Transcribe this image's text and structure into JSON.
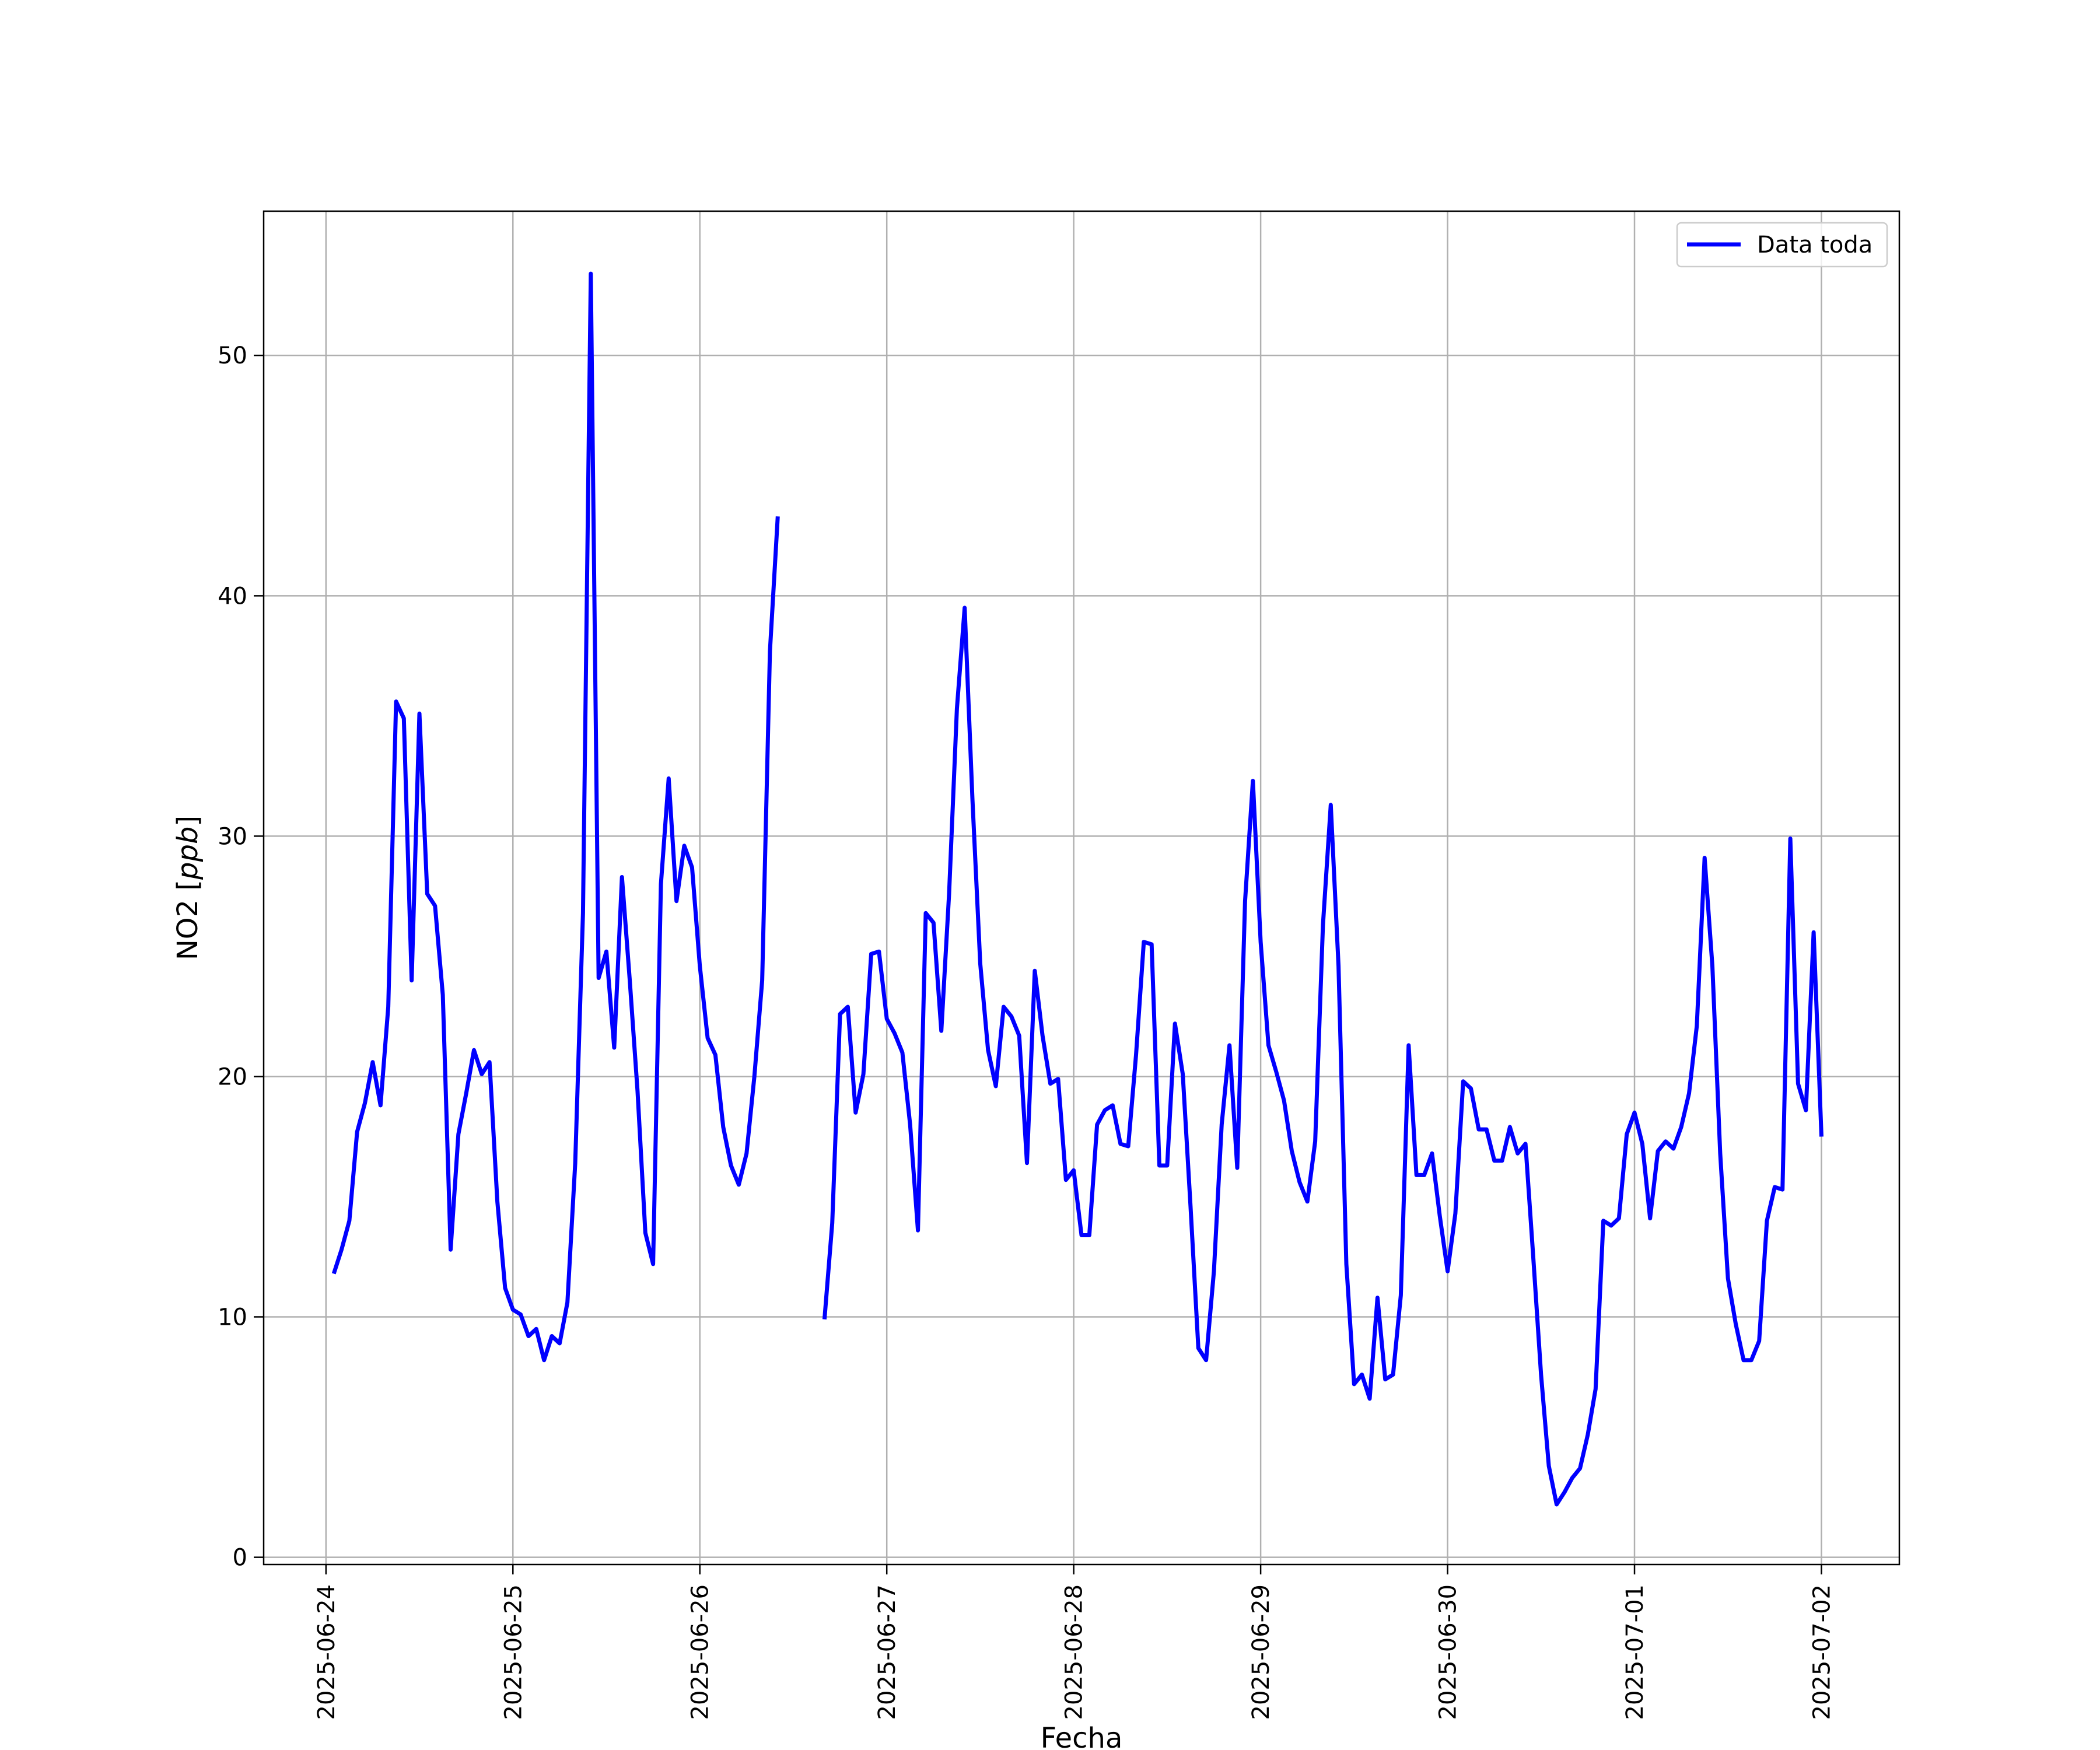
{
  "chart_data": {
    "type": "line",
    "title": "",
    "xlabel": "Fecha",
    "ylabel_main": "NO2 [",
    "ylabel_unit": "ppb",
    "ylabel_close": "]",
    "x_ticks": [
      "2025-06-24",
      "2025-06-25",
      "2025-06-26",
      "2025-06-27",
      "2025-06-28",
      "2025-06-29",
      "2025-06-30",
      "2025-07-01",
      "2025-07-02"
    ],
    "y_ticks": [
      "0",
      "10",
      "20",
      "30",
      "40",
      "50"
    ],
    "xlim": [
      "2025-06-23 16:00",
      "2025-07-02 10:00"
    ],
    "ylim": [
      -0.3,
      56
    ],
    "grid": true,
    "legend_position": "top-right",
    "series": [
      {
        "name": "Data toda",
        "color": "#0000ff",
        "points": [
          [
            "2025-06-24 01:00",
            11.8
          ],
          [
            "2025-06-24 02:00",
            12.8
          ],
          [
            "2025-06-24 03:00",
            14.0
          ],
          [
            "2025-06-24 04:00",
            17.7
          ],
          [
            "2025-06-24 05:00",
            18.9
          ],
          [
            "2025-06-24 06:00",
            20.6
          ],
          [
            "2025-06-24 07:00",
            18.8
          ],
          [
            "2025-06-24 08:00",
            22.9
          ],
          [
            "2025-06-24 09:00",
            35.6
          ],
          [
            "2025-06-24 10:00",
            34.9
          ],
          [
            "2025-06-24 11:00",
            24.0
          ],
          [
            "2025-06-24 12:00",
            35.1
          ],
          [
            "2025-06-24 13:00",
            27.6
          ],
          [
            "2025-06-24 14:00",
            27.1
          ],
          [
            "2025-06-24 15:00",
            23.4
          ],
          [
            "2025-06-24 16:00",
            12.8
          ],
          [
            "2025-06-24 17:00",
            17.6
          ],
          [
            "2025-06-24 18:00",
            19.3
          ],
          [
            "2025-06-24 19:00",
            21.1
          ],
          [
            "2025-06-24 20:00",
            20.1
          ],
          [
            "2025-06-24 21:00",
            20.6
          ],
          [
            "2025-06-24 22:00",
            14.8
          ],
          [
            "2025-06-24 23:00",
            11.2
          ],
          [
            "2025-06-25 00:00",
            10.3
          ],
          [
            "2025-06-25 01:00",
            10.1
          ],
          [
            "2025-06-25 02:00",
            9.2
          ],
          [
            "2025-06-25 03:00",
            9.5
          ],
          [
            "2025-06-25 04:00",
            8.2
          ],
          [
            "2025-06-25 05:00",
            9.2
          ],
          [
            "2025-06-25 06:00",
            8.9
          ],
          [
            "2025-06-25 07:00",
            10.6
          ],
          [
            "2025-06-25 08:00",
            16.4
          ],
          [
            "2025-06-25 09:00",
            26.8
          ],
          [
            "2025-06-25 10:00",
            53.4
          ],
          [
            "2025-06-25 11:00",
            24.1
          ],
          [
            "2025-06-25 12:00",
            25.2
          ],
          [
            "2025-06-25 13:00",
            21.2
          ],
          [
            "2025-06-25 14:00",
            28.3
          ],
          [
            "2025-06-25 15:00",
            24.0
          ],
          [
            "2025-06-25 16:00",
            19.4
          ],
          [
            "2025-06-25 17:00",
            13.5
          ],
          [
            "2025-06-25 18:00",
            12.2
          ],
          [
            "2025-06-25 19:00",
            28.0
          ],
          [
            "2025-06-25 20:00",
            32.4
          ],
          [
            "2025-06-25 21:00",
            27.3
          ],
          [
            "2025-06-25 22:00",
            29.6
          ],
          [
            "2025-06-25 23:00",
            28.7
          ],
          [
            "2025-06-26 00:00",
            24.6
          ],
          [
            "2025-06-26 01:00",
            21.6
          ],
          [
            "2025-06-26 02:00",
            20.9
          ],
          [
            "2025-06-26 03:00",
            17.9
          ],
          [
            "2025-06-26 04:00",
            16.3
          ],
          [
            "2025-06-26 05:00",
            15.5
          ],
          [
            "2025-06-26 06:00",
            16.8
          ],
          [
            "2025-06-26 07:00",
            20.0
          ],
          [
            "2025-06-26 08:00",
            24.0
          ],
          [
            "2025-06-26 09:00",
            37.7
          ],
          [
            "2025-06-26 10:00",
            43.3
          ],
          null,
          [
            "2025-06-26 16:00",
            9.9
          ],
          [
            "2025-06-26 17:00",
            13.9
          ],
          [
            "2025-06-26 18:00",
            22.6
          ],
          [
            "2025-06-26 19:00",
            22.9
          ],
          [
            "2025-06-26 20:00",
            18.5
          ],
          [
            "2025-06-26 21:00",
            20.1
          ],
          [
            "2025-06-26 22:00",
            25.1
          ],
          [
            "2025-06-26 23:00",
            25.2
          ],
          [
            "2025-06-27 00:00",
            22.4
          ],
          [
            "2025-06-27 01:00",
            21.8
          ],
          [
            "2025-06-27 02:00",
            21.0
          ],
          [
            "2025-06-27 03:00",
            18.0
          ],
          [
            "2025-06-27 04:00",
            13.6
          ],
          [
            "2025-06-27 05:00",
            26.8
          ],
          [
            "2025-06-27 06:00",
            26.4
          ],
          [
            "2025-06-27 07:00",
            21.9
          ],
          [
            "2025-06-27 08:00",
            27.6
          ],
          [
            "2025-06-27 09:00",
            35.3
          ],
          [
            "2025-06-27 10:00",
            39.5
          ],
          [
            "2025-06-27 11:00",
            31.5
          ],
          [
            "2025-06-27 12:00",
            24.7
          ],
          [
            "2025-06-27 13:00",
            21.1
          ],
          [
            "2025-06-27 14:00",
            19.6
          ],
          [
            "2025-06-27 15:00",
            22.9
          ],
          [
            "2025-06-27 16:00",
            22.5
          ],
          [
            "2025-06-27 17:00",
            21.7
          ],
          [
            "2025-06-27 18:00",
            16.4
          ],
          [
            "2025-06-27 19:00",
            24.4
          ],
          [
            "2025-06-27 20:00",
            21.7
          ],
          [
            "2025-06-27 21:00",
            19.7
          ],
          [
            "2025-06-27 22:00",
            19.9
          ],
          [
            "2025-06-27 23:00",
            15.7
          ],
          [
            "2025-06-28 00:00",
            16.1
          ],
          [
            "2025-06-28 01:00",
            13.4
          ],
          [
            "2025-06-28 02:00",
            13.4
          ],
          [
            "2025-06-28 03:00",
            18.0
          ],
          [
            "2025-06-28 04:00",
            18.6
          ],
          [
            "2025-06-28 05:00",
            18.8
          ],
          [
            "2025-06-28 06:00",
            17.2
          ],
          [
            "2025-06-28 07:00",
            17.1
          ],
          [
            "2025-06-28 08:00",
            20.9
          ],
          [
            "2025-06-28 09:00",
            25.6
          ],
          [
            "2025-06-28 10:00",
            25.5
          ],
          [
            "2025-06-28 11:00",
            16.3
          ],
          [
            "2025-06-28 12:00",
            16.3
          ],
          [
            "2025-06-28 13:00",
            22.2
          ],
          [
            "2025-06-28 14:00",
            20.1
          ],
          [
            "2025-06-28 15:00",
            14.6
          ],
          [
            "2025-06-28 16:00",
            8.7
          ],
          [
            "2025-06-28 17:00",
            8.2
          ],
          [
            "2025-06-28 18:00",
            11.9
          ],
          [
            "2025-06-28 19:00",
            18.0
          ],
          [
            "2025-06-28 20:00",
            21.3
          ],
          [
            "2025-06-28 21:00",
            16.2
          ],
          [
            "2025-06-28 22:00",
            27.3
          ],
          [
            "2025-06-28 23:00",
            32.3
          ],
          [
            "2025-06-29 00:00",
            25.6
          ],
          [
            "2025-06-29 01:00",
            21.3
          ],
          [
            "2025-06-29 02:00",
            20.2
          ],
          [
            "2025-06-29 03:00",
            19.0
          ],
          [
            "2025-06-29 04:00",
            16.9
          ],
          [
            "2025-06-29 05:00",
            15.6
          ],
          [
            "2025-06-29 06:00",
            14.8
          ],
          [
            "2025-06-29 07:00",
            17.3
          ],
          [
            "2025-06-29 08:00",
            26.3
          ],
          [
            "2025-06-29 09:00",
            31.3
          ],
          [
            "2025-06-29 10:00",
            24.6
          ],
          [
            "2025-06-29 11:00",
            12.2
          ],
          [
            "2025-06-29 12:00",
            7.2
          ],
          [
            "2025-06-29 13:00",
            7.6
          ],
          [
            "2025-06-29 14:00",
            6.6
          ],
          [
            "2025-06-29 15:00",
            10.8
          ],
          [
            "2025-06-29 16:00",
            7.4
          ],
          [
            "2025-06-29 17:00",
            7.6
          ],
          [
            "2025-06-29 18:00",
            10.9
          ],
          [
            "2025-06-29 19:00",
            21.3
          ],
          [
            "2025-06-29 20:00",
            15.9
          ],
          [
            "2025-06-29 21:00",
            15.9
          ],
          [
            "2025-06-29 22:00",
            16.8
          ],
          [
            "2025-06-29 23:00",
            14.2
          ],
          [
            "2025-06-30 00:00",
            11.9
          ],
          [
            "2025-06-30 01:00",
            14.3
          ],
          [
            "2025-06-30 02:00",
            19.8
          ],
          [
            "2025-06-30 03:00",
            19.5
          ],
          [
            "2025-06-30 04:00",
            17.8
          ],
          [
            "2025-06-30 05:00",
            17.8
          ],
          [
            "2025-06-30 06:00",
            16.5
          ],
          [
            "2025-06-30 07:00",
            16.5
          ],
          [
            "2025-06-30 08:00",
            17.9
          ],
          [
            "2025-06-30 09:00",
            16.8
          ],
          [
            "2025-06-30 10:00",
            17.2
          ],
          [
            "2025-06-30 11:00",
            12.5
          ],
          [
            "2025-06-30 12:00",
            7.6
          ],
          [
            "2025-06-30 13:00",
            3.8
          ],
          [
            "2025-06-30 14:00",
            2.2
          ],
          [
            "2025-06-30 15:00",
            2.7
          ],
          [
            "2025-06-30 16:00",
            3.3
          ],
          [
            "2025-06-30 17:00",
            3.7
          ],
          [
            "2025-06-30 18:00",
            5.1
          ],
          [
            "2025-06-30 19:00",
            7.0
          ],
          [
            "2025-06-30 20:00",
            14.0
          ],
          [
            "2025-06-30 21:00",
            13.8
          ],
          [
            "2025-06-30 22:00",
            14.1
          ],
          [
            "2025-06-30 23:00",
            17.6
          ],
          [
            "2025-07-01 00:00",
            18.5
          ],
          [
            "2025-07-01 01:00",
            17.2
          ],
          [
            "2025-07-01 02:00",
            14.1
          ],
          [
            "2025-07-01 03:00",
            16.9
          ],
          [
            "2025-07-01 04:00",
            17.3
          ],
          [
            "2025-07-01 05:00",
            17.0
          ],
          [
            "2025-07-01 06:00",
            17.9
          ],
          [
            "2025-07-01 07:00",
            19.3
          ],
          [
            "2025-07-01 08:00",
            22.1
          ],
          [
            "2025-07-01 09:00",
            29.1
          ],
          [
            "2025-07-01 10:00",
            24.6
          ],
          [
            "2025-07-01 11:00",
            16.8
          ],
          [
            "2025-07-01 12:00",
            11.6
          ],
          [
            "2025-07-01 13:00",
            9.7
          ],
          [
            "2025-07-01 14:00",
            8.2
          ],
          [
            "2025-07-01 15:00",
            8.2
          ],
          [
            "2025-07-01 16:00",
            9.0
          ],
          [
            "2025-07-01 17:00",
            14.0
          ],
          [
            "2025-07-01 18:00",
            15.4
          ],
          [
            "2025-07-01 19:00",
            15.3
          ],
          [
            "2025-07-01 20:00",
            29.9
          ],
          [
            "2025-07-01 21:00",
            19.7
          ],
          [
            "2025-07-01 22:00",
            18.6
          ],
          [
            "2025-07-01 23:00",
            26.0
          ],
          [
            "2025-07-02 00:00",
            17.5
          ]
        ]
      }
    ]
  }
}
